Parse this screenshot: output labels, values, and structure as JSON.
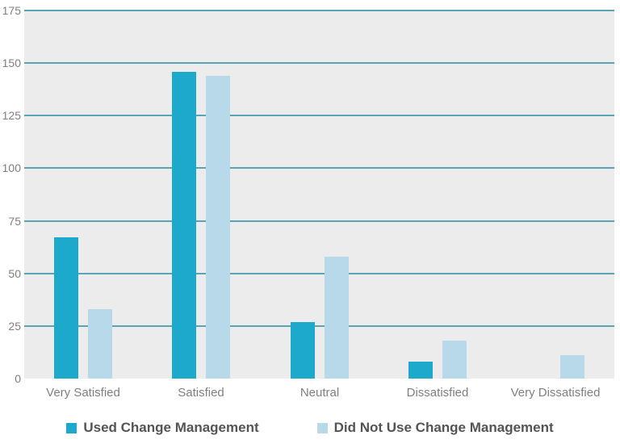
{
  "chart_data": {
    "type": "bar",
    "title": "",
    "xlabel": "",
    "ylabel": "",
    "categories": [
      "Very Satisfied",
      "Satisfied",
      "Neutral",
      "Dissatisfied",
      "Very Dissatisfied"
    ],
    "series": [
      {
        "name": "Used Change Management",
        "color": "#1ca9cc",
        "values": [
          67,
          146,
          27,
          8,
          0
        ]
      },
      {
        "name": "Did Not Use Change Management",
        "color": "#b7d9ea",
        "values": [
          33,
          144,
          58,
          18,
          11
        ]
      }
    ],
    "ylim": [
      0,
      175
    ],
    "yticks": [
      0,
      25,
      50,
      75,
      100,
      125,
      150,
      175
    ],
    "grid": true,
    "grid_skip_zero": true,
    "legend_position": "bottom"
  },
  "style": {
    "plot_background": "#ececec",
    "page_background": "#ffffff",
    "gridline_color": "#5aa4b6",
    "tick_label_color": "#7f7f7f",
    "legend_text_color": "#545454"
  }
}
